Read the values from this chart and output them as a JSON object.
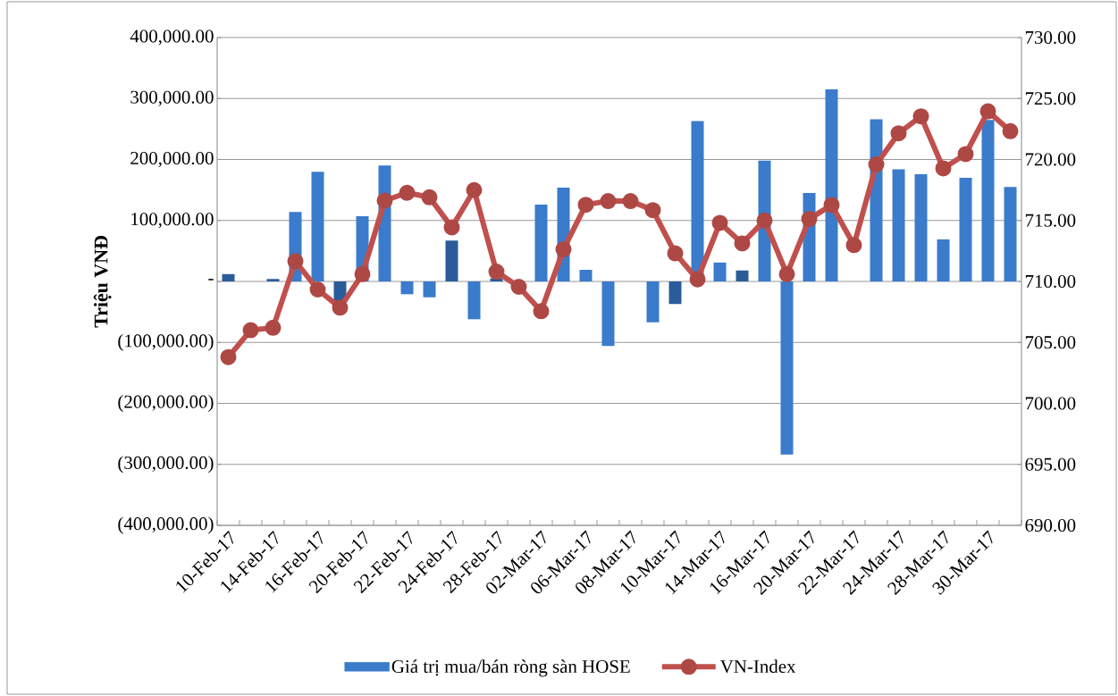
{
  "chart_data": {
    "type": "bar",
    "ylabel": "Triệu VNĐ",
    "categories": [
      "10-Feb-17",
      null,
      "14-Feb-17",
      null,
      "16-Feb-17",
      null,
      "20-Feb-17",
      null,
      "22-Feb-17",
      null,
      "24-Feb-17",
      null,
      "28-Feb-17",
      null,
      "02-Mar-17",
      null,
      "06-Mar-17",
      null,
      "08-Mar-17",
      null,
      "10-Mar-17",
      null,
      "14-Mar-17",
      null,
      "16-Mar-17",
      null,
      "20-Mar-17",
      null,
      "22-Mar-17",
      null,
      "24-Mar-17",
      null,
      "28-Mar-17",
      null,
      "30-Mar-17",
      null
    ],
    "series": [
      {
        "name": "Giá trị mua/bán ròng sàn HOSE",
        "color": "#3a7bcb",
        "colors": [
          "#2a5c9a",
          "#3a7bcb",
          "#2a5c9a",
          "#3a7bcb",
          "#3a7bcb",
          "#2a5c9a",
          "#3a7bcb",
          "#3a7bcb",
          "#3a7bcb",
          "#3a7bcb",
          "#2a5c9a",
          "#3a7bcb",
          "#2a5c9a",
          "#3a7bcb",
          "#3a7bcb",
          "#3a7bcb",
          "#3a7bcb",
          "#3a7bcb",
          "#3a7bcb",
          "#3a7bcb",
          "#2a5c9a",
          "#3a7bcb",
          "#3a7bcb",
          "#2a5c9a",
          "#3a7bcb",
          "#3a7bcb",
          "#3a7bcb",
          "#3a7bcb",
          "#3a7bcb",
          "#3a7bcb",
          "#3a7bcb",
          "#3a7bcb",
          "#3a7bcb",
          "#3a7bcb",
          "#3a7bcb",
          "#3a7bcb"
        ],
        "values": [
          12000,
          0,
          4000,
          114000,
          180000,
          -33000,
          107000,
          190000,
          -21000,
          -26000,
          67000,
          -62000,
          5000,
          0,
          126000,
          154000,
          19000,
          -106000,
          0,
          -67000,
          -37000,
          263000,
          31000,
          18000,
          198000,
          -284000,
          145000,
          315000,
          0,
          266000,
          184000,
          176000,
          69000,
          170000,
          265000,
          155000
        ]
      },
      {
        "name": "VN-Index",
        "type": "line",
        "axis": "y2",
        "color": "#c0504d",
        "values": [
          703.8,
          706.0,
          706.2,
          711.66,
          709.34,
          707.85,
          710.6,
          716.63,
          717.27,
          716.9,
          714.44,
          717.49,
          710.8,
          709.56,
          707.56,
          712.63,
          716.29,
          716.59,
          716.59,
          715.85,
          712.3,
          710.17,
          714.8,
          713.12,
          715.0,
          710.6,
          715.12,
          716.27,
          712.98,
          719.59,
          722.15,
          723.54,
          719.27,
          720.44,
          723.95,
          722.32
        ]
      }
    ],
    "ylim": [
      -400000,
      400000
    ],
    "yticks": [
      {
        "value": -400000,
        "label": "(400,000.00)"
      },
      {
        "value": -300000,
        "label": "(300,000.00)"
      },
      {
        "value": -200000,
        "label": "(200,000.00)"
      },
      {
        "value": -100000,
        "label": "(100,000.00)"
      },
      {
        "value": 0,
        "label": "-"
      },
      {
        "value": 100000,
        "label": "100,000.00"
      },
      {
        "value": 200000,
        "label": "200,000.00"
      },
      {
        "value": 300000,
        "label": "300,000.00"
      },
      {
        "value": 400000,
        "label": "400,000.00"
      }
    ],
    "y2lim": [
      690,
      730
    ],
    "y2ticks": [
      {
        "value": 690,
        "label": "690.00"
      },
      {
        "value": 695,
        "label": "695.00"
      },
      {
        "value": 700,
        "label": "700.00"
      },
      {
        "value": 705,
        "label": "705.00"
      },
      {
        "value": 710,
        "label": "710.00"
      },
      {
        "value": 715,
        "label": "715.00"
      },
      {
        "value": 720,
        "label": "720.00"
      },
      {
        "value": 725,
        "label": "725.00"
      },
      {
        "value": 730,
        "label": "730.00"
      }
    ],
    "grid": "y",
    "legend": "bottom",
    "marker": "circle"
  }
}
